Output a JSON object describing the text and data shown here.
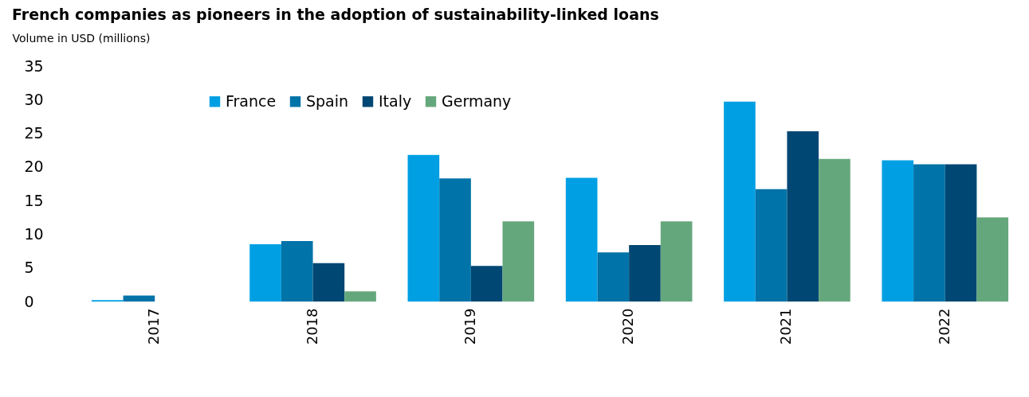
{
  "chart_data": {
    "type": "bar",
    "title": "French companies as pioneers in the adoption of sustainability-linked loans",
    "ylabel": "Volume in USD (millions)",
    "categories": [
      "2017",
      "2018",
      "2019",
      "2020",
      "2021",
      "2022"
    ],
    "series": [
      {
        "name": "France",
        "color": "#009fe3",
        "values": [
          0.2,
          8.5,
          21.8,
          18.4,
          29.7,
          21.0
        ]
      },
      {
        "name": "Spain",
        "color": "#0073a8",
        "values": [
          0.9,
          9.0,
          18.3,
          7.3,
          16.7,
          20.4
        ]
      },
      {
        "name": "Italy",
        "color": "#004773",
        "values": [
          null,
          5.7,
          5.3,
          8.4,
          25.3,
          20.4
        ]
      },
      {
        "name": "Germany",
        "color": "#65a77c",
        "values": [
          null,
          1.5,
          11.9,
          11.9,
          21.2,
          12.5
        ]
      }
    ],
    "ylim": [
      0,
      35
    ],
    "yticks": [
      0,
      5,
      10,
      15,
      20,
      25,
      30,
      35
    ],
    "grid": false,
    "legend": "top left"
  }
}
